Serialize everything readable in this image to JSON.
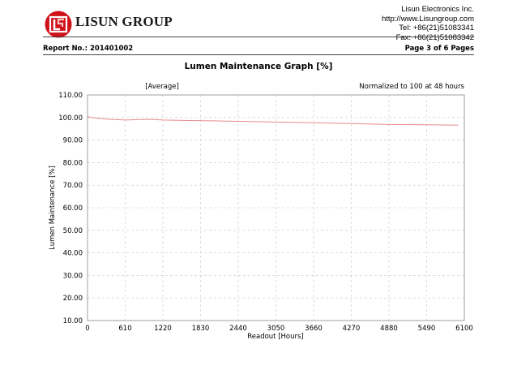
{
  "header": {
    "brand": "LISUN GROUP",
    "contact": [
      "Lisun Electronics Inc.",
      "http://www.Lisungroup.com",
      "Tel: +86(21)51083341",
      "Fax: +86(21)51083342"
    ],
    "report_no": "Report No.: 201401002",
    "page_info": "Page 3 of 6 Pages"
  },
  "colors": {
    "logo_red": "#d0121b",
    "series_line": "#e88a8a",
    "grid": "#c8c8c8"
  },
  "chart_data": {
    "type": "line",
    "title": "Lumen Maintenance Graph [%]",
    "subtitle_left": "[Average]",
    "subtitle_right": "Normalized to 100 at 48 hours",
    "xlabel": "Readout [Hours]",
    "ylabel": "Lumen Maintenance [%]",
    "xlim": [
      0,
      6100
    ],
    "ylim": [
      10,
      110
    ],
    "x_ticks": [
      0,
      610,
      1220,
      1830,
      2440,
      3050,
      3660,
      4270,
      4880,
      5490,
      6100
    ],
    "y_ticks": [
      "10.00",
      "20.00",
      "30.00",
      "40.00",
      "50.00",
      "60.00",
      "70.00",
      "80.00",
      "90.00",
      "100.00",
      "110.00"
    ],
    "grid": true,
    "series": [
      {
        "x": [
          0,
          48,
          300,
          610,
          1000,
          1220,
          1830,
          2440,
          3050,
          3660,
          4270,
          4880,
          5490,
          6000
        ],
        "values": [
          100.5,
          100.0,
          99.3,
          98.9,
          99.2,
          98.9,
          98.6,
          98.3,
          98.0,
          97.7,
          97.3,
          96.9,
          96.8,
          96.6
        ]
      }
    ]
  }
}
